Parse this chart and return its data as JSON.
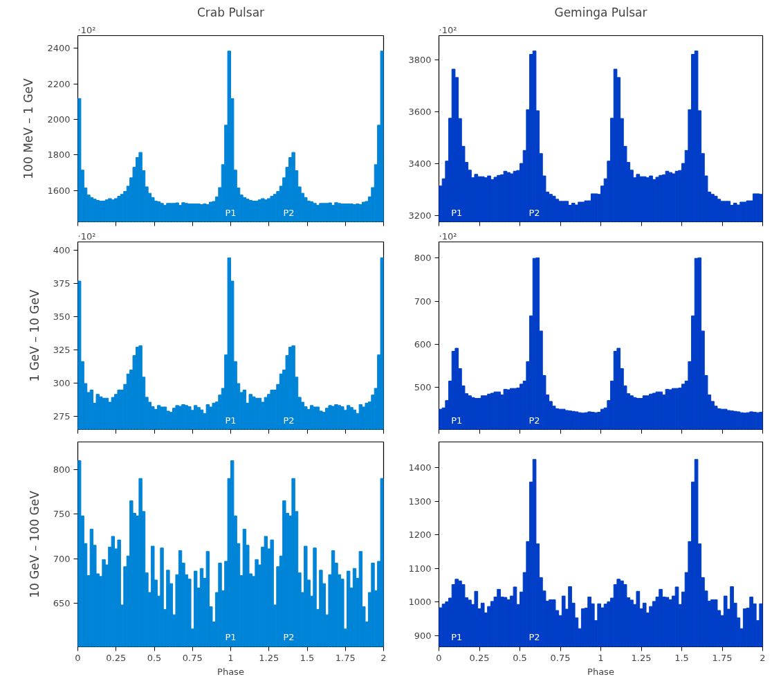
{
  "chart_data": [
    {
      "type": "histogram",
      "title": "Crab Pulsar",
      "ylabel": "100 MeV – 1 GeV",
      "color": "#0084d8",
      "xlim": [
        0,
        2
      ],
      "ylim": [
        1424,
        2472
      ],
      "xticks": [
        0,
        0.25,
        0.5,
        0.75,
        1,
        1.25,
        1.5,
        1.75,
        2
      ],
      "yticks": [
        1600,
        1800,
        2000,
        2200,
        2400
      ],
      "tick_labels": "y",
      "grid": false,
      "bins": [
        0,
        0.02,
        0.04,
        0.06,
        0.08,
        0.1,
        0.12,
        0.14,
        0.16,
        0.18,
        0.2,
        0.22,
        0.24,
        0.26,
        0.28,
        0.3,
        0.32,
        0.34,
        0.36,
        0.38,
        0.4,
        0.42,
        0.44,
        0.46,
        0.48,
        0.5,
        0.52,
        0.54,
        0.56,
        0.58,
        0.6,
        0.62,
        0.64,
        0.66,
        0.68,
        0.7,
        0.72,
        0.74,
        0.76,
        0.78,
        0.8,
        0.82,
        0.84,
        0.86,
        0.88,
        0.9,
        0.92,
        0.94,
        0.96,
        0.98,
        1,
        1.02,
        1.04,
        1.06,
        1.08,
        1.1,
        1.12,
        1.14,
        1.16,
        1.18,
        1.2,
        1.22,
        1.24,
        1.26,
        1.28,
        1.3,
        1.32,
        1.34,
        1.36,
        1.38,
        1.4,
        1.42,
        1.44,
        1.46,
        1.48,
        1.5,
        1.52,
        1.54,
        1.56,
        1.58,
        1.6,
        1.62,
        1.64,
        1.66,
        1.68,
        1.7,
        1.72,
        1.74,
        1.76,
        1.78,
        1.8,
        1.82,
        1.84,
        1.86,
        1.88,
        1.9,
        1.92,
        1.94,
        1.96,
        1.98,
        2
      ],
      "values": [
        2118,
        1715,
        1615,
        1575,
        1561,
        1552,
        1545,
        1541,
        1541,
        1548,
        1555,
        1548,
        1555,
        1568,
        1579,
        1595,
        1625,
        1672,
        1731,
        1786,
        1815,
        1712,
        1621,
        1585,
        1561,
        1541,
        1537,
        1528,
        1517,
        1528,
        1528,
        1528,
        1531,
        1517,
        1532,
        1528,
        1525,
        1525,
        1525,
        1525,
        1521,
        1525,
        1521,
        1535,
        1539,
        1565,
        1617,
        1746,
        1968,
        2385,
        2118,
        1715,
        1615,
        1575,
        1561,
        1552,
        1545,
        1541,
        1541,
        1548,
        1555,
        1548,
        1555,
        1568,
        1579,
        1595,
        1625,
        1672,
        1731,
        1786,
        1815,
        1712,
        1621,
        1585,
        1561,
        1541,
        1537,
        1528,
        1517,
        1528,
        1528,
        1528,
        1531,
        1517,
        1532,
        1528,
        1525,
        1525,
        1525,
        1525,
        1521,
        1525,
        1521,
        1535,
        1539,
        1565,
        1617,
        1746,
        1968,
        2385
      ],
      "annotations": [
        "·10²",
        {
          "text": "P1",
          "x": 1.0,
          "y": 1475
        },
        {
          "text": "P2",
          "x": 1.38,
          "y": 1475
        }
      ]
    },
    {
      "type": "histogram",
      "title": "Geminga Pulsar",
      "color": "#003ec8",
      "xlim": [
        0,
        2
      ],
      "ylim": [
        3175,
        3892
      ],
      "xticks": [
        0,
        0.25,
        0.5,
        0.75,
        1,
        1.25,
        1.5,
        1.75,
        2
      ],
      "yticks": [
        3200,
        3400,
        3600,
        3800
      ],
      "tick_labels": "y",
      "grid": false,
      "bins": [
        0,
        0.02,
        0.04,
        0.06,
        0.08,
        0.1,
        0.12,
        0.14,
        0.16,
        0.18,
        0.2,
        0.22,
        0.24,
        0.26,
        0.28,
        0.3,
        0.32,
        0.34,
        0.36,
        0.38,
        0.4,
        0.42,
        0.44,
        0.46,
        0.48,
        0.5,
        0.52,
        0.54,
        0.56,
        0.58,
        0.6,
        0.62,
        0.64,
        0.66,
        0.68,
        0.7,
        0.72,
        0.74,
        0.76,
        0.78,
        0.8,
        0.82,
        0.84,
        0.86,
        0.88,
        0.9,
        0.92,
        0.94,
        0.96,
        0.98,
        1,
        1.02,
        1.04,
        1.06,
        1.08,
        1.1,
        1.12,
        1.14,
        1.16,
        1.18,
        1.2,
        1.22,
        1.24,
        1.26,
        1.28,
        1.3,
        1.32,
        1.34,
        1.36,
        1.38,
        1.4,
        1.42,
        1.44,
        1.46,
        1.48,
        1.5,
        1.52,
        1.54,
        1.56,
        1.58,
        1.6,
        1.62,
        1.64,
        1.66,
        1.68,
        1.7,
        1.72,
        1.74,
        1.76,
        1.78,
        1.8,
        1.82,
        1.84,
        1.86,
        1.88,
        1.9,
        1.92,
        1.94,
        1.96,
        1.98,
        2
      ],
      "values": [
        3313,
        3341,
        3409,
        3574,
        3763,
        3731,
        3573,
        3466,
        3404,
        3374,
        3345,
        3358,
        3349,
        3349,
        3345,
        3352,
        3338,
        3347,
        3354,
        3356,
        3370,
        3365,
        3360,
        3370,
        3373,
        3400,
        3450,
        3607,
        3820,
        3833,
        3603,
        3438,
        3352,
        3290,
        3281,
        3274,
        3262,
        3254,
        3254,
        3254,
        3239,
        3247,
        3240,
        3251,
        3251,
        3256,
        3256,
        3283,
        3283,
        3281,
        3313,
        3341,
        3409,
        3574,
        3763,
        3731,
        3573,
        3466,
        3404,
        3374,
        3345,
        3358,
        3349,
        3349,
        3345,
        3352,
        3338,
        3347,
        3354,
        3356,
        3370,
        3365,
        3360,
        3370,
        3373,
        3400,
        3450,
        3607,
        3820,
        3833,
        3603,
        3438,
        3352,
        3290,
        3281,
        3274,
        3262,
        3254,
        3254,
        3254,
        3239,
        3247,
        3240,
        3251,
        3251,
        3256,
        3256,
        3283,
        3283,
        3281
      ],
      "annotations": [
        "·10²",
        {
          "text": "P1",
          "x": 0.11,
          "y": 3210
        },
        {
          "text": "P2",
          "x": 0.59,
          "y": 3210
        }
      ]
    },
    {
      "type": "histogram",
      "ylabel": "1 GeV – 10 GeV",
      "color": "#0084d8",
      "xlim": [
        0,
        2
      ],
      "ylim": [
        265.3,
        406.1
      ],
      "xticks": [
        0,
        0.25,
        0.5,
        0.75,
        1,
        1.25,
        1.5,
        1.75,
        2
      ],
      "yticks": [
        275,
        300,
        325,
        350,
        375,
        400
      ],
      "tick_labels": "y",
      "grid": false,
      "bins": [
        0,
        0.02,
        0.04,
        0.06,
        0.08,
        0.1,
        0.12,
        0.14,
        0.16,
        0.18,
        0.2,
        0.22,
        0.24,
        0.26,
        0.28,
        0.3,
        0.32,
        0.34,
        0.36,
        0.38,
        0.4,
        0.42,
        0.44,
        0.46,
        0.48,
        0.5,
        0.52,
        0.54,
        0.56,
        0.58,
        0.6,
        0.62,
        0.64,
        0.66,
        0.68,
        0.7,
        0.72,
        0.74,
        0.76,
        0.78,
        0.8,
        0.82,
        0.84,
        0.86,
        0.88,
        0.9,
        0.92,
        0.94,
        0.96,
        0.98,
        1,
        1.02,
        1.04,
        1.06,
        1.08,
        1.1,
        1.12,
        1.14,
        1.16,
        1.18,
        1.2,
        1.22,
        1.24,
        1.26,
        1.28,
        1.3,
        1.32,
        1.34,
        1.36,
        1.38,
        1.4,
        1.42,
        1.44,
        1.46,
        1.48,
        1.5,
        1.52,
        1.54,
        1.56,
        1.58,
        1.6,
        1.62,
        1.64,
        1.66,
        1.68,
        1.7,
        1.72,
        1.74,
        1.76,
        1.78,
        1.8,
        1.82,
        1.84,
        1.86,
        1.88,
        1.9,
        1.92,
        1.94,
        1.96,
        1.98,
        2
      ],
      "values": [
        376.7,
        316.3,
        299.8,
        293.1,
        294.9,
        285.1,
        291.7,
        289.9,
        288.8,
        288.8,
        285.8,
        289.4,
        291.7,
        294.9,
        294.9,
        299.2,
        307,
        310,
        320.8,
        327.1,
        328.2,
        304.6,
        289.5,
        285.8,
        282.4,
        280.4,
        283.3,
        282.2,
        282.2,
        279.1,
        278.2,
        281.3,
        283.3,
        282.7,
        284,
        283.3,
        282.4,
        279.7,
        283.3,
        281.8,
        280,
        277.3,
        284,
        282.2,
        285.1,
        286,
        291.2,
        296.2,
        321.3,
        394.1,
        376.7,
        316.3,
        299.8,
        293.1,
        294.9,
        285.1,
        291.7,
        289.9,
        288.8,
        288.8,
        285.8,
        289.4,
        291.7,
        294.9,
        294.9,
        299.2,
        307,
        310,
        320.8,
        327.1,
        328.2,
        304.6,
        289.5,
        285.8,
        282.4,
        280.4,
        283.3,
        282.2,
        282.2,
        279.1,
        278.2,
        281.3,
        283.3,
        282.7,
        284,
        283.3,
        282.4,
        279.7,
        283.3,
        281.8,
        280,
        277.3,
        284,
        282.2,
        285.1,
        286,
        291.2,
        296.2,
        321.3,
        394.1
      ],
      "annotations": [
        "·10²",
        {
          "text": "P1",
          "x": 1.0,
          "y": 272
        },
        {
          "text": "P2",
          "x": 1.38,
          "y": 272
        }
      ]
    },
    {
      "type": "histogram",
      "color": "#003ec8",
      "xlim": [
        0,
        2
      ],
      "ylim": [
        403,
        837
      ],
      "xticks": [
        0,
        0.25,
        0.5,
        0.75,
        1,
        1.25,
        1.5,
        1.75,
        2
      ],
      "yticks": [
        500,
        600,
        700,
        800
      ],
      "tick_labels": "y",
      "grid": false,
      "bins": [
        0,
        0.02,
        0.04,
        0.06,
        0.08,
        0.1,
        0.12,
        0.14,
        0.16,
        0.18,
        0.2,
        0.22,
        0.24,
        0.26,
        0.28,
        0.3,
        0.32,
        0.34,
        0.36,
        0.38,
        0.4,
        0.42,
        0.44,
        0.46,
        0.48,
        0.5,
        0.52,
        0.54,
        0.56,
        0.58,
        0.6,
        0.62,
        0.64,
        0.66,
        0.68,
        0.7,
        0.72,
        0.74,
        0.76,
        0.78,
        0.8,
        0.82,
        0.84,
        0.86,
        0.88,
        0.9,
        0.92,
        0.94,
        0.96,
        0.98,
        1,
        1.02,
        1.04,
        1.06,
        1.08,
        1.1,
        1.12,
        1.14,
        1.16,
        1.18,
        1.2,
        1.22,
        1.24,
        1.26,
        1.28,
        1.3,
        1.32,
        1.34,
        1.36,
        1.38,
        1.4,
        1.42,
        1.44,
        1.46,
        1.48,
        1.5,
        1.52,
        1.54,
        1.56,
        1.58,
        1.6,
        1.62,
        1.64,
        1.66,
        1.68,
        1.7,
        1.72,
        1.74,
        1.76,
        1.78,
        1.8,
        1.82,
        1.84,
        1.86,
        1.88,
        1.9,
        1.92,
        1.94,
        1.96,
        1.98,
        2
      ],
      "values": [
        450,
        453,
        470,
        515,
        584,
        591,
        544,
        504,
        486,
        481,
        477,
        475,
        475,
        481,
        481,
        485,
        487,
        490,
        490,
        483,
        496,
        495,
        498,
        498,
        499,
        508,
        515,
        560,
        666,
        799,
        800,
        631,
        528,
        483,
        468,
        457,
        451,
        450,
        450,
        447,
        446,
        445,
        444,
        442,
        441,
        442,
        444,
        443,
        442,
        443,
        450,
        453,
        470,
        515,
        584,
        591,
        544,
        504,
        486,
        481,
        477,
        475,
        475,
        481,
        481,
        485,
        487,
        490,
        490,
        483,
        496,
        495,
        498,
        498,
        499,
        508,
        515,
        560,
        666,
        799,
        800,
        631,
        528,
        483,
        468,
        457,
        451,
        450,
        450,
        447,
        446,
        445,
        444,
        442,
        441,
        442,
        444,
        443,
        442,
        443
      ],
      "annotations": [
        "·10²",
        {
          "text": "P1",
          "x": 0.11,
          "y": 424
        },
        {
          "text": "P2",
          "x": 0.59,
          "y": 424
        }
      ]
    },
    {
      "type": "histogram",
      "xlabel": "Phase",
      "ylabel": "10 GeV – 100 GeV",
      "color": "#0084d8",
      "xlim": [
        0,
        2
      ],
      "ylim": [
        601,
        831
      ],
      "xticks": [
        0,
        0.25,
        0.5,
        0.75,
        1,
        1.25,
        1.5,
        1.75,
        2
      ],
      "yticks": [
        650,
        700,
        750,
        800
      ],
      "grid": false,
      "bins": [
        0,
        0.02,
        0.04,
        0.06,
        0.08,
        0.1,
        0.12,
        0.14,
        0.16,
        0.18,
        0.2,
        0.22,
        0.24,
        0.26,
        0.28,
        0.3,
        0.32,
        0.34,
        0.36,
        0.38,
        0.4,
        0.42,
        0.44,
        0.46,
        0.48,
        0.5,
        0.52,
        0.54,
        0.56,
        0.58,
        0.6,
        0.62,
        0.64,
        0.66,
        0.68,
        0.7,
        0.72,
        0.74,
        0.76,
        0.78,
        0.8,
        0.82,
        0.84,
        0.86,
        0.88,
        0.9,
        0.92,
        0.94,
        0.96,
        0.98,
        1,
        1.02,
        1.04,
        1.06,
        1.08,
        1.1,
        1.12,
        1.14,
        1.16,
        1.18,
        1.2,
        1.22,
        1.24,
        1.26,
        1.28,
        1.3,
        1.32,
        1.34,
        1.36,
        1.38,
        1.4,
        1.42,
        1.44,
        1.46,
        1.48,
        1.5,
        1.52,
        1.54,
        1.56,
        1.58,
        1.6,
        1.62,
        1.64,
        1.66,
        1.68,
        1.7,
        1.72,
        1.74,
        1.76,
        1.78,
        1.8,
        1.82,
        1.84,
        1.86,
        1.88,
        1.9,
        1.92,
        1.94,
        1.96,
        1.98,
        2
      ],
      "values": [
        810,
        748,
        717,
        681,
        733,
        715,
        683,
        680,
        699,
        693,
        713,
        725,
        711,
        721,
        648,
        691,
        703,
        765,
        751,
        748,
        790,
        753,
        684,
        662,
        714,
        676,
        658,
        712,
        643,
        687,
        672,
        637,
        682,
        709,
        695,
        682,
        677,
        621,
        686,
        667,
        689,
        678,
        708,
        646,
        629,
        662,
        695,
        664,
        697,
        790,
        810,
        748,
        717,
        681,
        733,
        715,
        683,
        680,
        699,
        693,
        713,
        725,
        711,
        721,
        648,
        691,
        703,
        765,
        751,
        748,
        790,
        753,
        684,
        662,
        714,
        676,
        658,
        712,
        643,
        687,
        672,
        637,
        682,
        709,
        695,
        682,
        677,
        621,
        686,
        667,
        689,
        678,
        708,
        646,
        629,
        662,
        695,
        664,
        697,
        790
      ],
      "annotations": [
        {
          "text": "P1",
          "x": 1.0,
          "y": 612
        },
        {
          "text": "P2",
          "x": 1.38,
          "y": 612
        }
      ]
    },
    {
      "type": "histogram",
      "xlabel": "Phase",
      "color": "#003ec8",
      "xlim": [
        0,
        2
      ],
      "ylim": [
        867,
        1476
      ],
      "xticks": [
        0,
        0.25,
        0.5,
        0.75,
        1,
        1.25,
        1.5,
        1.75,
        2
      ],
      "yticks": [
        900,
        1000,
        1100,
        1200,
        1300,
        1400
      ],
      "grid": false,
      "bins": [
        0,
        0.02,
        0.04,
        0.06,
        0.08,
        0.1,
        0.12,
        0.14,
        0.16,
        0.18,
        0.2,
        0.22,
        0.24,
        0.26,
        0.28,
        0.3,
        0.32,
        0.34,
        0.36,
        0.38,
        0.4,
        0.42,
        0.44,
        0.46,
        0.48,
        0.5,
        0.52,
        0.54,
        0.56,
        0.58,
        0.6,
        0.62,
        0.64,
        0.66,
        0.68,
        0.7,
        0.72,
        0.74,
        0.76,
        0.78,
        0.8,
        0.82,
        0.84,
        0.86,
        0.88,
        0.9,
        0.92,
        0.94,
        0.96,
        0.98,
        1,
        1.02,
        1.04,
        1.06,
        1.08,
        1.1,
        1.12,
        1.14,
        1.16,
        1.18,
        1.2,
        1.22,
        1.24,
        1.26,
        1.28,
        1.3,
        1.32,
        1.34,
        1.36,
        1.38,
        1.4,
        1.42,
        1.44,
        1.46,
        1.48,
        1.5,
        1.52,
        1.54,
        1.56,
        1.58,
        1.6,
        1.62,
        1.64,
        1.66,
        1.68,
        1.7,
        1.72,
        1.74,
        1.76,
        1.78,
        1.8,
        1.82,
        1.84,
        1.86,
        1.88,
        1.9,
        1.92,
        1.94,
        1.96,
        1.98,
        2
      ],
      "values": [
        983,
        994,
        1001,
        1012,
        1052,
        1068,
        1063,
        1052,
        1013,
        1006,
        993,
        1032,
        980,
        997,
        968,
        987,
        1002,
        1015,
        1038,
        1015,
        1014,
        1007,
        1018,
        1045,
        993,
        1030,
        1088,
        1180,
        1357,
        1424,
        1173,
        1073,
        1033,
        1003,
        1007,
        1007,
        975,
        960,
        1018,
        979,
        1046,
        997,
        953,
        921,
        980,
        982,
        1015,
        995,
        945,
        995,
        983,
        994,
        1001,
        1012,
        1052,
        1068,
        1063,
        1052,
        1013,
        1006,
        993,
        1032,
        980,
        997,
        968,
        987,
        1002,
        1015,
        1038,
        1015,
        1014,
        1007,
        1018,
        1045,
        993,
        1030,
        1088,
        1180,
        1357,
        1424,
        1173,
        1073,
        1033,
        1003,
        1007,
        1007,
        975,
        960,
        1018,
        979,
        1046,
        997,
        953,
        921,
        980,
        982,
        1015,
        995,
        945,
        995
      ],
      "annotations": [
        {
          "text": "P1",
          "x": 0.11,
          "y": 896
        },
        {
          "text": "P2",
          "x": 0.59,
          "y": 896
        }
      ]
    }
  ]
}
